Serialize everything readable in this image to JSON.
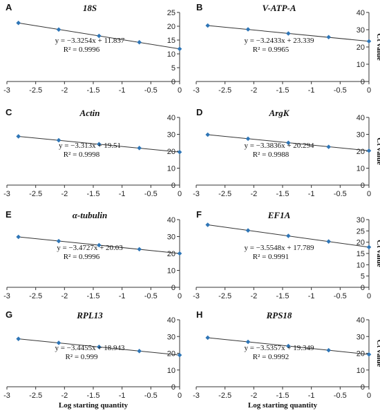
{
  "chart_data": [
    {
      "type": "scatter",
      "panel": "A",
      "title": "18S",
      "ylim": [
        0,
        25
      ],
      "yticks": [
        0,
        5,
        10,
        15,
        20,
        25
      ],
      "xlim": [
        -3,
        0
      ],
      "xticks": [
        "-3",
        "-2.5",
        "-2",
        "-1.5",
        "-1",
        "-0.5",
        "0"
      ],
      "x": [
        -2.8,
        -2.1,
        -1.4,
        -0.7,
        0
      ],
      "y": [
        21.2,
        18.8,
        16.5,
        14.2,
        11.8
      ],
      "fit": {
        "slope": -3.3254,
        "intercept": 11.837
      },
      "equation": "y = −3.3254x + 11.837",
      "r2": "R² = 0.9996",
      "ylabel": "",
      "xlabel": ""
    },
    {
      "type": "scatter",
      "panel": "B",
      "title": "V-ATP-A",
      "ylim": [
        0,
        40
      ],
      "yticks": [
        0,
        10,
        20,
        30,
        40
      ],
      "xlim": [
        -3,
        0
      ],
      "xticks": [
        "-3",
        "-2.5",
        "-2",
        "-1.5",
        "-1",
        "-0.5",
        "0"
      ],
      "x": [
        -2.8,
        -2.1,
        -1.4,
        -0.7,
        0
      ],
      "y": [
        32.4,
        30.2,
        27.8,
        25.7,
        23.3
      ],
      "fit": {
        "slope": -3.2433,
        "intercept": 23.339
      },
      "equation": "y = −3.2433x + 23.339",
      "r2": "R² = 0.9965",
      "ylabel": "Ct value",
      "xlabel": ""
    },
    {
      "type": "scatter",
      "panel": "C",
      "title": "Actin",
      "ylim": [
        0,
        40
      ],
      "yticks": [
        0,
        10,
        20,
        30,
        40
      ],
      "xlim": [
        -3,
        0
      ],
      "xticks": [
        "-3",
        "-2.5",
        "-2",
        "-1.5",
        "-1",
        "-0.5",
        "0"
      ],
      "x": [
        -2.8,
        -2.1,
        -1.4,
        -0.7,
        0
      ],
      "y": [
        28.8,
        26.5,
        24.2,
        21.9,
        19.5
      ],
      "fit": {
        "slope": -3.313,
        "intercept": 19.51
      },
      "equation": "y = −3.313x + 19.51",
      "r2": "R² = 0.9998",
      "ylabel": "",
      "xlabel": ""
    },
    {
      "type": "scatter",
      "panel": "D",
      "title": "ArgK",
      "ylim": [
        0,
        40
      ],
      "yticks": [
        0,
        10,
        20,
        30,
        40
      ],
      "xlim": [
        -3,
        0
      ],
      "xticks": [
        "-3",
        "-2.5",
        "-2",
        "-1.5",
        "-1",
        "-0.5",
        "0"
      ],
      "x": [
        -2.8,
        -2.1,
        -1.4,
        -0.7,
        0
      ],
      "y": [
        29.8,
        27.4,
        25.0,
        22.6,
        20.3
      ],
      "fit": {
        "slope": -3.3836,
        "intercept": 20.294
      },
      "equation": "y = −3.3836x + 20.294",
      "r2": "R² = 0.9988",
      "ylabel": "Ct value",
      "xlabel": ""
    },
    {
      "type": "scatter",
      "panel": "E",
      "title": "α-tubulin",
      "ylim": [
        0,
        40
      ],
      "yticks": [
        0,
        10,
        20,
        30,
        40
      ],
      "xlim": [
        -3,
        0
      ],
      "xticks": [
        "-3",
        "-2.5",
        "-2",
        "-1.5",
        "-1",
        "-0.5",
        "0"
      ],
      "x": [
        -2.8,
        -2.1,
        -1.4,
        -0.7,
        0
      ],
      "y": [
        29.8,
        27.3,
        24.9,
        22.5,
        20.0
      ],
      "fit": {
        "slope": -3.4727,
        "intercept": 20.03
      },
      "equation": "y = −3.4727x + 20.03",
      "r2": "R² = 0.9996",
      "ylabel": "",
      "xlabel": ""
    },
    {
      "type": "scatter",
      "panel": "F",
      "title": "EF1A",
      "ylim": [
        0,
        30
      ],
      "yticks": [
        0,
        5,
        10,
        15,
        20,
        25,
        30
      ],
      "xlim": [
        -3,
        0
      ],
      "xticks": [
        "-3",
        "-2.5",
        "-2",
        "-1.5",
        "-1",
        "-0.5",
        "0"
      ],
      "x": [
        -2.8,
        -2.1,
        -1.4,
        -0.7,
        0
      ],
      "y": [
        27.7,
        25.2,
        22.8,
        20.3,
        17.8
      ],
      "fit": {
        "slope": -3.5548,
        "intercept": 17.789
      },
      "equation": "y = −3.5548x + 17.789",
      "r2": "R² = 0.9991",
      "ylabel": "Ct value",
      "xlabel": ""
    },
    {
      "type": "scatter",
      "panel": "G",
      "title": "RPL13",
      "ylim": [
        0,
        40
      ],
      "yticks": [
        0,
        10,
        20,
        30,
        40
      ],
      "xlim": [
        -3,
        0
      ],
      "xticks": [
        "-3",
        "-2.5",
        "-2",
        "-1.5",
        "-1",
        "-0.5",
        "0"
      ],
      "x": [
        -2.8,
        -2.1,
        -1.4,
        -0.7,
        0
      ],
      "y": [
        28.6,
        26.2,
        23.8,
        21.3,
        18.9
      ],
      "fit": {
        "slope": -3.4455,
        "intercept": 18.943
      },
      "equation": "y = −3.4455x + 18.943",
      "r2": "R² = 0.999",
      "ylabel": "",
      "xlabel": "Log starting quantity"
    },
    {
      "type": "scatter",
      "panel": "H",
      "title": "RPS18",
      "ylim": [
        0,
        40
      ],
      "yticks": [
        0,
        10,
        20,
        30,
        40
      ],
      "xlim": [
        -3,
        0
      ],
      "xticks": [
        "-3",
        "-2.5",
        "-2",
        "-1.5",
        "-1",
        "-0.5",
        "0"
      ],
      "x": [
        -2.8,
        -2.1,
        -1.4,
        -0.7,
        0
      ],
      "y": [
        29.3,
        26.8,
        24.3,
        21.8,
        19.3
      ],
      "fit": {
        "slope": -3.5357,
        "intercept": 19.349
      },
      "equation": "y = −3.5357x + 19.349",
      "r2": "R² = 0.9992",
      "ylabel": "Ct value",
      "xlabel": "Log starting quantity"
    }
  ],
  "colors": {
    "marker": "#2e75b6",
    "line": "#333333",
    "axis": "#333333",
    "text": "#111111"
  }
}
